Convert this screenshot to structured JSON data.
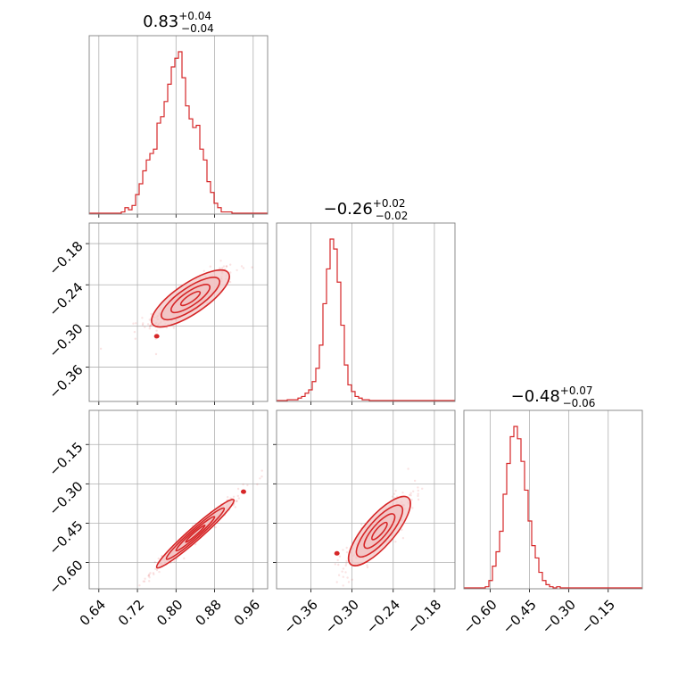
{
  "colors": {
    "accent": "#d62728",
    "fill": "#f2c4c4",
    "grid": "#b0b0b0",
    "frame": "#808080"
  },
  "chart_data": {
    "type": "corner",
    "grid": true,
    "titles": [
      {
        "value": "0.83",
        "plus": "+0.04",
        "minus": "−0.04"
      },
      {
        "value": "−0.26",
        "plus": "+0.02",
        "minus": "−0.02"
      },
      {
        "value": "−0.48",
        "plus": "+0.07",
        "minus": "−0.06"
      }
    ],
    "axes": [
      {
        "range": [
          0.62,
          0.99
        ],
        "ticks": [
          0.64,
          0.72,
          0.8,
          0.88,
          0.96
        ],
        "tick_labels": [
          "0.64",
          "0.72",
          "0.80",
          "0.88",
          "0.96"
        ]
      },
      {
        "range": [
          -0.41,
          -0.15
        ],
        "ticks": [
          -0.36,
          -0.3,
          -0.24,
          -0.18
        ],
        "tick_labels": [
          "−0.36",
          "−0.30",
          "−0.24",
          "−0.18"
        ]
      },
      {
        "range": [
          -0.7,
          -0.02
        ],
        "ticks": [
          -0.6,
          -0.45,
          -0.3,
          -0.15
        ],
        "tick_labels": [
          "−0.60",
          "−0.45",
          "−0.30",
          "−0.15"
        ]
      }
    ],
    "histograms": [
      {
        "start": 0.62,
        "step": 0.0074,
        "counts": [
          0,
          0,
          0,
          0,
          0,
          0,
          0,
          0,
          0,
          1,
          3,
          2,
          4,
          9,
          14,
          20,
          25,
          28,
          30,
          42,
          45,
          52,
          60,
          68,
          72,
          75,
          63,
          50,
          44,
          40,
          41,
          30,
          25,
          15,
          10,
          5,
          3,
          1,
          1,
          1,
          0,
          0,
          0,
          0,
          0,
          0,
          0,
          0,
          0,
          0
        ]
      },
      {
        "start": -0.41,
        "step": 0.0052,
        "counts": [
          0,
          0,
          0,
          1,
          1,
          1,
          2,
          3,
          5,
          7,
          12,
          20,
          34,
          59,
          80,
          98,
          92,
          72,
          46,
          22,
          10,
          6,
          3,
          2,
          1,
          1,
          0,
          0,
          0,
          0,
          0,
          0,
          0,
          0,
          0,
          0,
          0,
          0,
          0,
          0,
          0,
          0,
          0,
          0,
          0,
          0,
          0,
          0,
          0,
          0
        ]
      },
      {
        "start": -0.7,
        "step": 0.0136,
        "counts": [
          0,
          0,
          0,
          0,
          0,
          0,
          1,
          4,
          11,
          18,
          28,
          46,
          61,
          74,
          79,
          73,
          62,
          48,
          33,
          21,
          15,
          8,
          4,
          2,
          1,
          0,
          1,
          0,
          0,
          0,
          0,
          0,
          0,
          0,
          0,
          0,
          0,
          0,
          0,
          0,
          0,
          0,
          0,
          0,
          0,
          0,
          0,
          0,
          0,
          0
        ]
      }
    ],
    "pairs": [
      {
        "x_param": 0,
        "y_param": 1,
        "center": [
          0.83,
          -0.26
        ],
        "sigma": [
          0.04,
          0.02
        ],
        "rho": 0.85,
        "outlier": [
          0.76,
          -0.315
        ]
      },
      {
        "x_param": 0,
        "y_param": 2,
        "center": [
          0.84,
          -0.49
        ],
        "sigma": [
          0.04,
          0.065
        ],
        "rho": 0.98,
        "outlier": [
          0.94,
          -0.33
        ]
      },
      {
        "x_param": 1,
        "y_param": 2,
        "center": [
          -0.26,
          -0.48
        ],
        "sigma": [
          0.022,
          0.065
        ],
        "rho": 0.86,
        "outlier": [
          -0.322,
          -0.565
        ]
      }
    ],
    "contour_levels": [
      0.5,
      1.0,
      1.5,
      2.0
    ]
  }
}
